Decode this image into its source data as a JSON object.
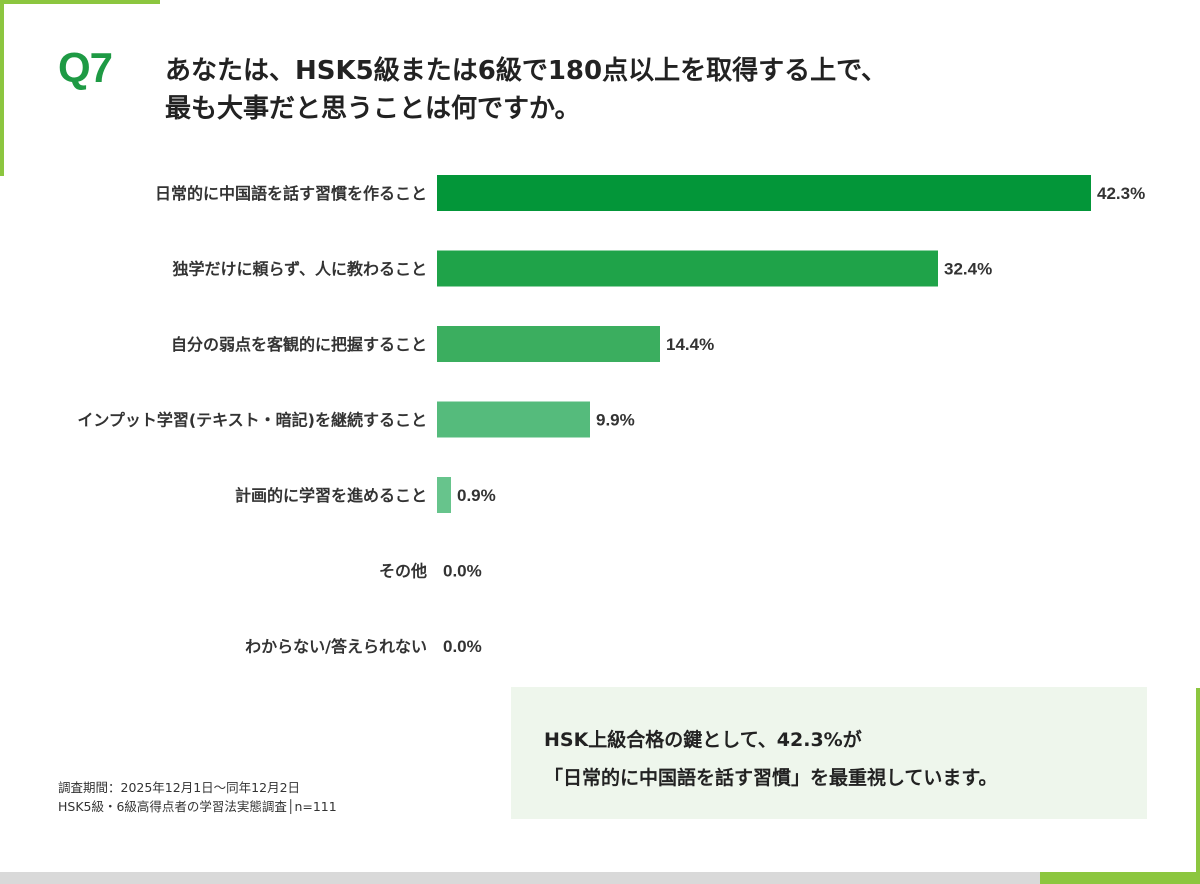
{
  "question": {
    "number": "Q7",
    "text": "あなたは、HSK5級または6級で180点以上を取得する上で、\n最も大事だと思うことは何ですか。"
  },
  "chart_data": {
    "type": "bar",
    "orientation": "horizontal",
    "categories": [
      "日常的に中国語を話す習慣を作ること",
      "独学だけに頼らず、人に教わること",
      "自分の弱点を客観的に把握すること",
      "インプット学習(テキスト・暗記)を継続すること",
      "計画的に学習を進めること",
      "その他",
      "わからない/答えられない"
    ],
    "values": [
      42.3,
      32.4,
      14.4,
      9.9,
      0.9,
      0.0,
      0.0
    ],
    "value_labels": [
      "42.3%",
      "32.4%",
      "14.4%",
      "9.9%",
      "0.9%",
      "0.0%",
      "0.0%"
    ],
    "bar_colors": [
      "#039639",
      "#1fa349",
      "#3bae5f",
      "#55bb7c",
      "#67c48c",
      "#67c48c",
      "#67c48c"
    ],
    "title": "",
    "xlabel": "",
    "ylabel": "",
    "xlim": [
      0,
      42.3
    ],
    "grid": false,
    "legend": "none"
  },
  "callout": {
    "line1": "HSK上級合格の鍵として、42.3%が",
    "line2": "「日常的に中国語を話す習慣」を最重視しています。"
  },
  "footnote": {
    "period": "調査期間：2025年12月1日～同年12月2日",
    "survey": "HSK5級・6級高得点者の学習法実態調査│n=111"
  },
  "colors": {
    "accent_green": "#1e9a44",
    "frame_green": "#8cc63f",
    "callout_bg": "#eef6ec"
  }
}
